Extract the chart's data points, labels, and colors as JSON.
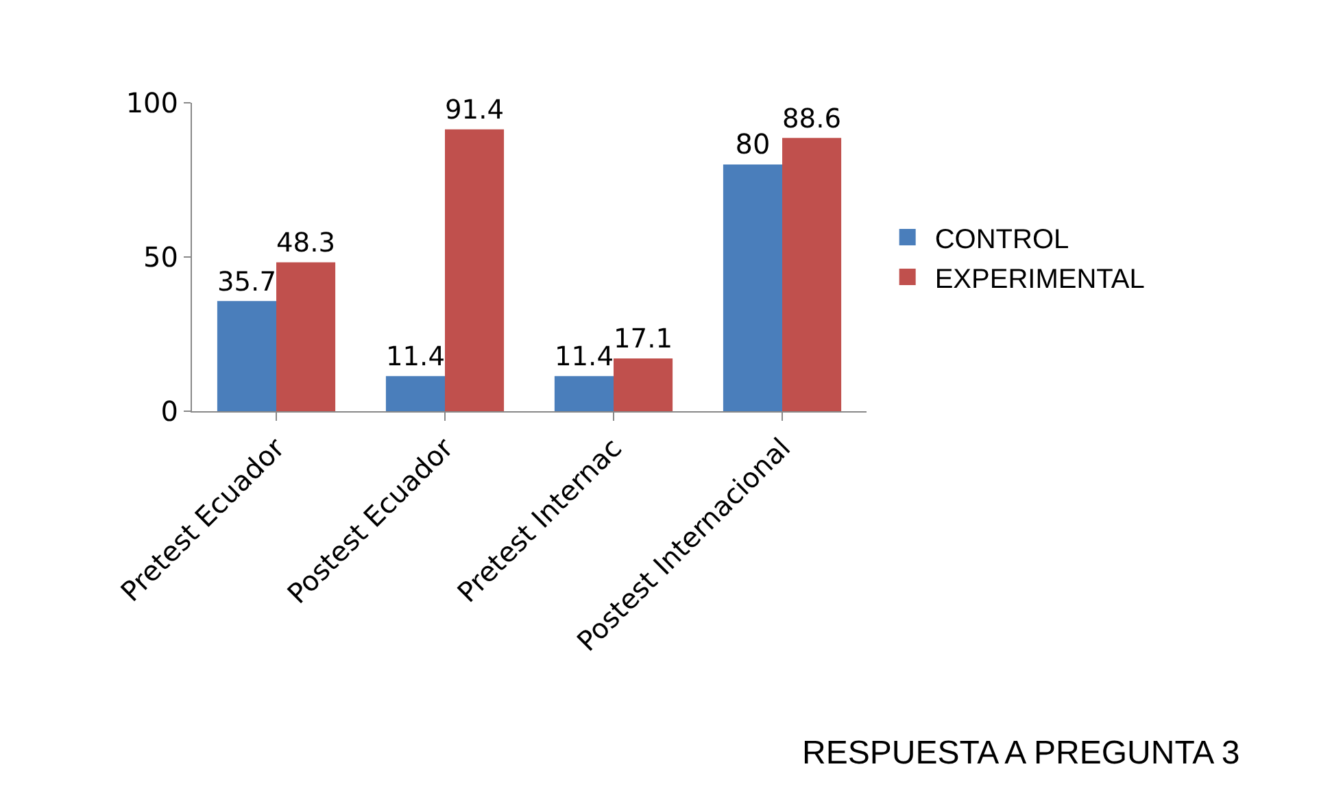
{
  "chart_data": {
    "type": "bar",
    "title": "RESPUESTA A PREGUNTA 3",
    "categories": [
      "Pretest Ecuador",
      "Postest Ecuador",
      "Pretest Internac",
      "Postest Internacional"
    ],
    "series": [
      {
        "name": "CONTROL",
        "color": "#4a7ebb",
        "values": [
          35.7,
          11.4,
          11.4,
          80
        ]
      },
      {
        "name": "EXPERIMENTAL",
        "color": "#c0504d",
        "values": [
          48.3,
          91.4,
          17.1,
          88.6
        ]
      }
    ],
    "ylim": [
      0,
      100
    ],
    "yticks": [
      0,
      50,
      100
    ],
    "data_labels": true,
    "legend": "right"
  }
}
